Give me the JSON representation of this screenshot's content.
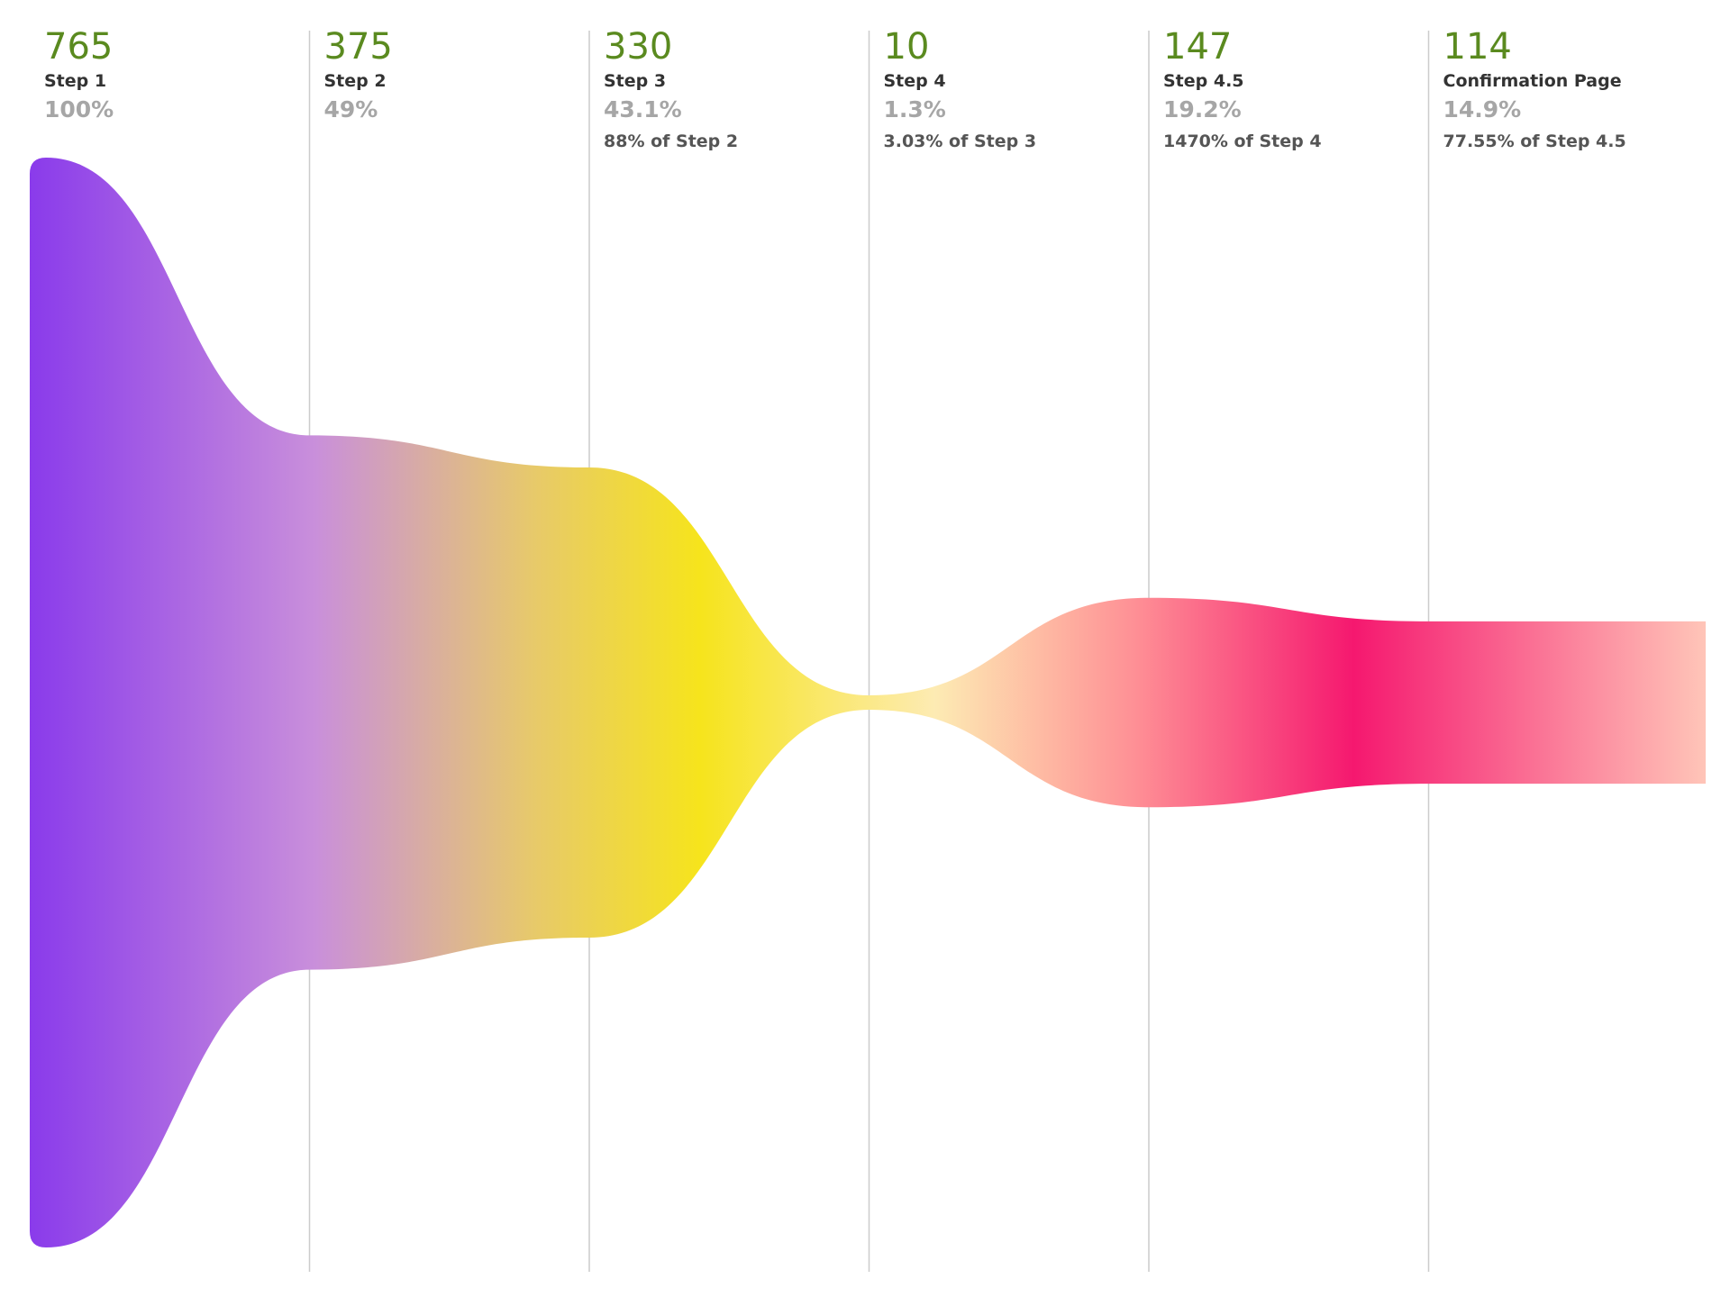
{
  "chart_data": {
    "type": "funnel",
    "steps": [
      {
        "name": "Step 1",
        "value": 765,
        "percent_of_total": "100%",
        "relative": ""
      },
      {
        "name": "Step 2",
        "value": 375,
        "percent_of_total": "49%",
        "relative": ""
      },
      {
        "name": "Step 3",
        "value": 330,
        "percent_of_total": "43.1%",
        "relative": "88% of Step 2"
      },
      {
        "name": "Step 4",
        "value": 10,
        "percent_of_total": "1.3%",
        "relative": "3.03% of Step 3"
      },
      {
        "name": "Step 4.5",
        "value": 147,
        "percent_of_total": "19.2%",
        "relative": "1470% of Step 4"
      },
      {
        "name": "Confirmation Page",
        "value": 114,
        "percent_of_total": "14.9%",
        "relative": "77.55% of Step 4.5"
      }
    ],
    "gradient_colors": [
      "#8a3beb",
      "#c98fdb",
      "#e7c96b",
      "#f6e41c",
      "#fdebb3",
      "#fe8f95",
      "#f5186f",
      "#ffc5b8"
    ],
    "divider_color": "#cccccc",
    "grid": true
  }
}
